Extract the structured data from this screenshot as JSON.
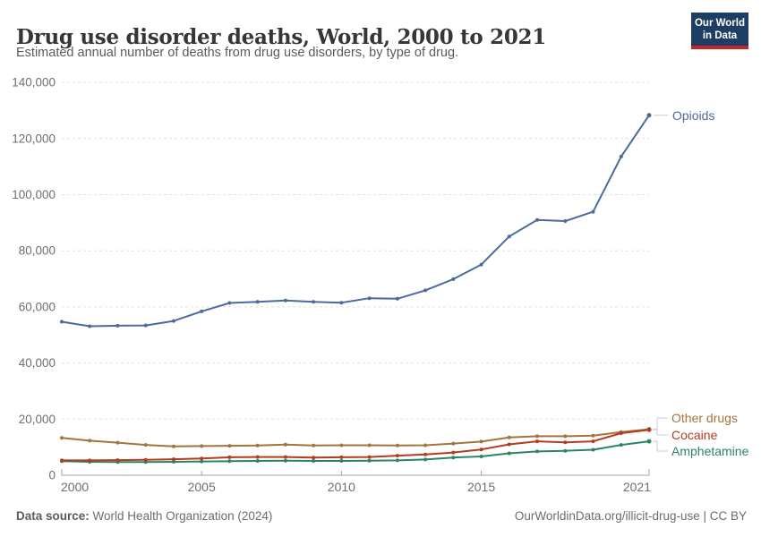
{
  "header": {
    "title": "Drug use disorder deaths, World, 2000 to 2021",
    "subtitle": "Estimated annual number of deaths from drug use disorders, by type of drug.",
    "logo_line1": "Our World",
    "logo_line2": "in Data"
  },
  "colors": {
    "logo_background": "#1d3d63",
    "logo_stripe": "#c7252b",
    "opioids": "#4C6A9C",
    "other_drugs": "#A2753C",
    "cocaine": "#B63A1D",
    "amphetamine": "#2C8465",
    "gridline": "#e0e0e0",
    "axis": "#a3a3a3"
  },
  "chart_data": {
    "type": "line",
    "title": "Drug use disorder deaths, World, 2000 to 2021",
    "xlabel": "",
    "ylabel": "",
    "x": [
      2000,
      2001,
      2002,
      2003,
      2004,
      2005,
      2006,
      2007,
      2008,
      2009,
      2010,
      2011,
      2012,
      2013,
      2014,
      2015,
      2016,
      2017,
      2018,
      2019,
      2020,
      2021
    ],
    "series": [
      {
        "name": "Opioids",
        "color": "#4C6A9C",
        "values": [
          54700,
          53100,
          53300,
          53400,
          55000,
          58400,
          61400,
          61800,
          62300,
          61800,
          61500,
          63100,
          62900,
          65900,
          69900,
          75100,
          85100,
          91000,
          90600,
          93900,
          113600,
          128300
        ]
      },
      {
        "name": "Other drugs",
        "color": "#A2753C",
        "values": [
          13300,
          12300,
          11600,
          10800,
          10300,
          10400,
          10500,
          10600,
          10900,
          10600,
          10700,
          10700,
          10600,
          10700,
          11300,
          12000,
          13500,
          13900,
          13900,
          14100,
          15400,
          16400
        ]
      },
      {
        "name": "Cocaine",
        "color": "#B63A1D",
        "values": [
          5300,
          5300,
          5400,
          5500,
          5700,
          6000,
          6400,
          6500,
          6500,
          6300,
          6400,
          6500,
          7000,
          7400,
          8100,
          9200,
          11000,
          12100,
          11700,
          12100,
          15000,
          16200
        ]
      },
      {
        "name": "Amphetamine",
        "color": "#2C8465",
        "values": [
          5000,
          4800,
          4700,
          4700,
          4800,
          4900,
          5000,
          5100,
          5200,
          5100,
          5100,
          5200,
          5300,
          5600,
          6300,
          6700,
          7800,
          8500,
          8700,
          9100,
          10800,
          12100
        ]
      }
    ],
    "ylim": [
      0,
      140000
    ],
    "yticks": [
      0,
      20000,
      40000,
      60000,
      80000,
      100000,
      120000,
      140000
    ],
    "xticks": [
      2000,
      2005,
      2010,
      2015,
      2021
    ],
    "grid": "horizontal-dashed",
    "legend_position": "labels-at-right-line-ends",
    "markers": "point-dots"
  },
  "footer": {
    "source_label": "Data source:",
    "source_text": "World Health Organization (2024)",
    "credit": "OurWorldinData.org/illicit-drug-use | CC BY"
  }
}
